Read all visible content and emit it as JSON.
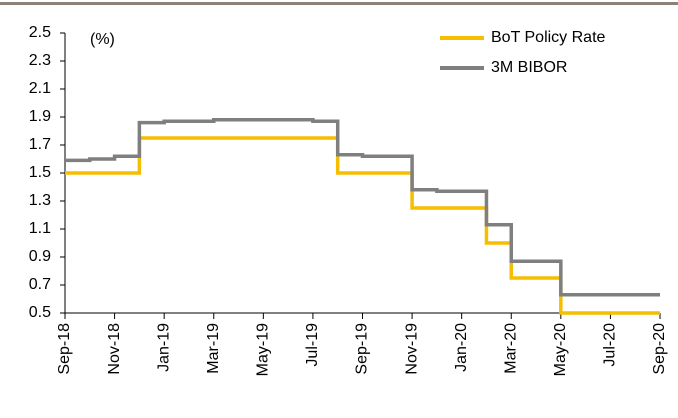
{
  "chart_data": {
    "type": "line",
    "step": true,
    "y_label": "(%)",
    "categories": [
      "Sep-18",
      null,
      "Nov-18",
      null,
      "Jan-19",
      null,
      "Mar-19",
      null,
      "May-19",
      null,
      "Jul-19",
      null,
      "Sep-19",
      null,
      "Nov-19",
      null,
      "Jan-20",
      null,
      "Mar-20",
      null,
      "May-20",
      null,
      "Jul-20",
      null,
      "Sep-20"
    ],
    "series": [
      {
        "name": "BoT Policy Rate",
        "color": "#f5be00",
        "values": [
          1.5,
          1.5,
          1.5,
          1.75,
          1.75,
          1.75,
          1.75,
          1.75,
          1.75,
          1.75,
          1.75,
          1.5,
          1.5,
          1.5,
          1.25,
          1.25,
          1.25,
          1.0,
          0.75,
          0.75,
          0.5,
          0.5,
          0.5,
          0.5,
          0.5
        ]
      },
      {
        "name": "3M BIBOR",
        "color": "#7f7f7f",
        "values": [
          1.59,
          1.6,
          1.62,
          1.86,
          1.87,
          1.87,
          1.88,
          1.88,
          1.88,
          1.88,
          1.87,
          1.63,
          1.62,
          1.62,
          1.38,
          1.37,
          1.37,
          1.13,
          0.87,
          0.87,
          0.63,
          0.63,
          0.63,
          0.63,
          0.63
        ]
      }
    ],
    "ylim": [
      0.5,
      2.5
    ],
    "yticks": [
      0.5,
      0.7,
      0.9,
      1.1,
      1.3,
      1.5,
      1.7,
      1.9,
      2.1,
      2.3,
      2.5
    ],
    "legend": "top-right",
    "grid": false
  }
}
